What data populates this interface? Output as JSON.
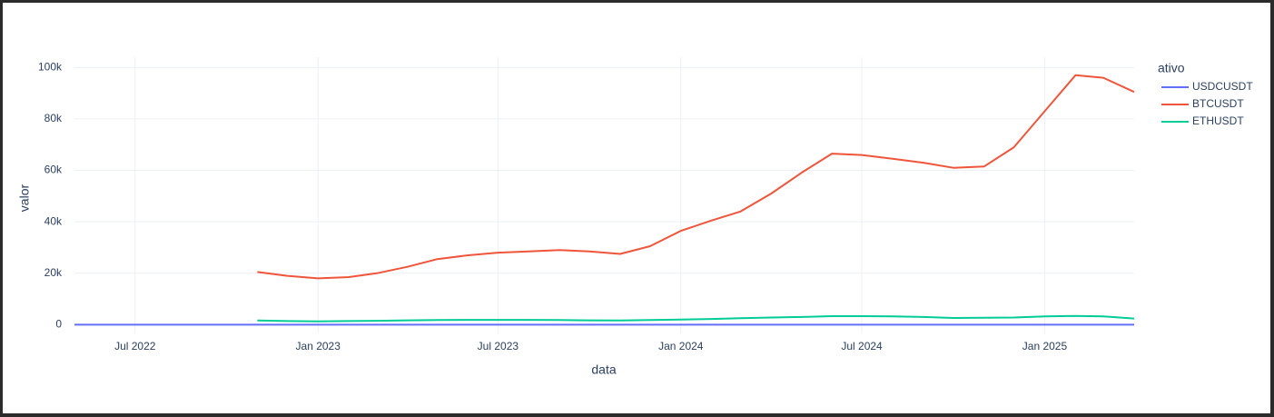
{
  "chart_data": {
    "type": "line",
    "x_title": "data",
    "y_title": "valor",
    "legend_title": "ativo",
    "xlim": [
      "2022-05",
      "2025-04"
    ],
    "xticks": [
      {
        "value": "2022-07",
        "label": "Jul 2022"
      },
      {
        "value": "2023-01",
        "label": "Jan 2023"
      },
      {
        "value": "2023-07",
        "label": "Jul 2023"
      },
      {
        "value": "2024-01",
        "label": "Jan 2024"
      },
      {
        "value": "2024-07",
        "label": "Jul 2024"
      },
      {
        "value": "2025-01",
        "label": "Jan 2025"
      }
    ],
    "ylim": [
      -3400,
      104000
    ],
    "yticks": [
      0,
      {
        "value": 20000,
        "label": "20k"
      },
      {
        "value": 40000,
        "label": "40k"
      },
      {
        "value": 60000,
        "label": "60k"
      },
      {
        "value": 80000,
        "label": "80k"
      },
      {
        "value": 100000,
        "label": "100k"
      }
    ],
    "grid": true,
    "series": [
      {
        "name": "USDCUSDT",
        "color": "#636efa",
        "x": [
          "2022-05",
          "2022-06",
          "2022-07",
          "2022-08",
          "2022-09",
          "2022-10",
          "2022-11",
          "2022-12",
          "2023-01",
          "2023-02",
          "2023-03",
          "2023-04",
          "2023-05",
          "2023-06",
          "2023-07",
          "2023-08",
          "2023-09",
          "2023-10",
          "2023-11",
          "2023-12",
          "2024-01",
          "2024-02",
          "2024-03",
          "2024-04",
          "2024-05",
          "2024-06",
          "2024-07",
          "2024-08",
          "2024-09",
          "2024-10",
          "2024-11",
          "2024-12",
          "2025-01",
          "2025-02",
          "2025-03",
          "2025-04"
        ],
        "values": [
          1,
          1,
          1,
          1,
          1,
          1,
          1,
          1,
          1,
          1,
          1,
          1,
          1,
          1,
          1,
          1,
          1,
          1,
          1,
          1,
          1,
          1,
          1,
          1,
          1,
          1,
          1,
          1,
          1,
          1,
          1,
          1,
          1,
          1,
          1,
          1
        ]
      },
      {
        "name": "BTCUSDT",
        "color": "#ef553b",
        "x": [
          "2022-11",
          "2022-12",
          "2023-01",
          "2023-02",
          "2023-03",
          "2023-04",
          "2023-05",
          "2023-06",
          "2023-07",
          "2023-08",
          "2023-09",
          "2023-10",
          "2023-11",
          "2023-12",
          "2024-01",
          "2024-02",
          "2024-03",
          "2024-04",
          "2024-05",
          "2024-06",
          "2024-07",
          "2024-08",
          "2024-09",
          "2024-10",
          "2024-11",
          "2024-12",
          "2025-01",
          "2025-02",
          "2025-03",
          "2025-04"
        ],
        "values": [
          20500,
          19000,
          18000,
          18500,
          20000,
          22500,
          25500,
          27000,
          28000,
          28500,
          29000,
          28500,
          27500,
          30500,
          36500,
          40500,
          44000,
          51000,
          59000,
          66500,
          66000,
          64500,
          63000,
          61000,
          61500,
          69000,
          83000,
          97000,
          96000,
          90500
        ]
      },
      {
        "name": "ETHUSDT",
        "color": "#00cc96",
        "x": [
          "2022-11",
          "2022-12",
          "2023-01",
          "2023-02",
          "2023-03",
          "2023-04",
          "2023-05",
          "2023-06",
          "2023-07",
          "2023-08",
          "2023-09",
          "2023-10",
          "2023-11",
          "2023-12",
          "2024-01",
          "2024-02",
          "2024-03",
          "2024-04",
          "2024-05",
          "2024-06",
          "2024-07",
          "2024-08",
          "2024-09",
          "2024-10",
          "2024-11",
          "2024-12",
          "2025-01",
          "2025-02",
          "2025-03",
          "2025-04"
        ],
        "values": [
          1600,
          1400,
          1300,
          1400,
          1500,
          1700,
          1800,
          1850,
          1850,
          1850,
          1800,
          1700,
          1600,
          1800,
          2000,
          2200,
          2500,
          2800,
          3000,
          3300,
          3300,
          3200,
          3000,
          2600,
          2700,
          2800,
          3200,
          3400,
          3200,
          2400
        ]
      }
    ]
  }
}
